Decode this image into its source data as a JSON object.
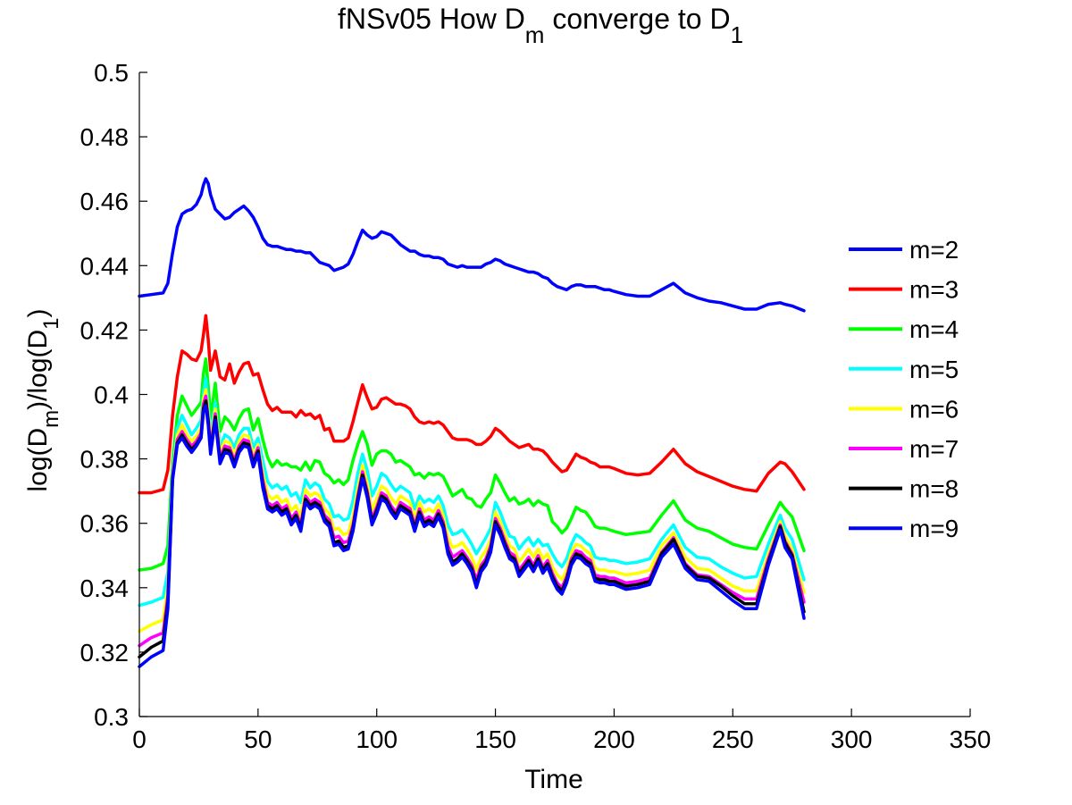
{
  "chart_data": {
    "type": "line",
    "title": {
      "prefix": "fNSv05 How D",
      "sub1": "m",
      "mid": " converge to D",
      "sub2": "1"
    },
    "xlabel": "Time",
    "ylabel": {
      "p1": "log(D",
      "s1": "m",
      "p2": ")/log(D",
      "s2": "1",
      "p3": ")"
    },
    "xlim": [
      0,
      350
    ],
    "ylim": [
      0.3,
      0.5
    ],
    "xticks": [
      0,
      50,
      100,
      150,
      200,
      250,
      300,
      350
    ],
    "yticks": [
      0.3,
      0.32,
      0.34,
      0.36,
      0.38,
      0.4,
      0.42,
      0.44,
      0.46,
      0.48,
      0.5
    ],
    "ytick_labels": [
      "0.3",
      "0.32",
      "0.34",
      "0.36",
      "0.38",
      "0.4",
      "0.42",
      "0.44",
      "0.46",
      "0.48",
      "0.5"
    ],
    "legend_position": "right",
    "x": [
      0,
      5,
      10,
      12,
      14,
      16,
      18,
      20,
      22,
      24,
      26,
      27,
      28,
      29,
      30,
      32,
      34,
      36,
      38,
      40,
      42,
      44,
      46,
      48,
      50,
      52,
      54,
      56,
      58,
      60,
      62,
      64,
      66,
      68,
      70,
      72,
      74,
      76,
      78,
      80,
      82,
      84,
      86,
      88,
      90,
      92,
      94,
      96,
      98,
      100,
      102,
      104,
      106,
      108,
      110,
      112,
      114,
      116,
      118,
      120,
      122,
      124,
      126,
      128,
      130,
      132,
      134,
      136,
      138,
      140,
      142,
      144,
      146,
      148,
      150,
      152,
      154,
      156,
      158,
      160,
      162,
      164,
      166,
      168,
      170,
      172,
      174,
      176,
      178,
      180,
      182,
      184,
      186,
      188,
      190,
      192,
      194,
      196,
      198,
      200,
      205,
      210,
      215,
      220,
      225,
      230,
      235,
      240,
      245,
      250,
      255,
      260,
      265,
      270,
      272,
      275,
      280
    ],
    "series": [
      {
        "name": "m=2",
        "color": "#0000ff",
        "values": [
          0.4305,
          0.431,
          0.4315,
          0.4345,
          0.444,
          0.452,
          0.456,
          0.457,
          0.4575,
          0.459,
          0.462,
          0.465,
          0.467,
          0.4655,
          0.462,
          0.4575,
          0.456,
          0.4545,
          0.455,
          0.4565,
          0.4575,
          0.4585,
          0.457,
          0.455,
          0.452,
          0.4485,
          0.4465,
          0.446,
          0.446,
          0.4455,
          0.445,
          0.445,
          0.4445,
          0.4445,
          0.444,
          0.444,
          0.4425,
          0.441,
          0.4405,
          0.44,
          0.4385,
          0.439,
          0.4395,
          0.4405,
          0.4435,
          0.4475,
          0.451,
          0.4495,
          0.4485,
          0.449,
          0.4505,
          0.45,
          0.4495,
          0.448,
          0.4465,
          0.4455,
          0.4445,
          0.4445,
          0.4435,
          0.443,
          0.443,
          0.4425,
          0.4425,
          0.442,
          0.4405,
          0.44,
          0.4395,
          0.44,
          0.4395,
          0.4395,
          0.4395,
          0.4395,
          0.4405,
          0.441,
          0.442,
          0.4415,
          0.4405,
          0.44,
          0.4395,
          0.439,
          0.4385,
          0.438,
          0.438,
          0.4375,
          0.4365,
          0.436,
          0.4345,
          0.4335,
          0.433,
          0.4325,
          0.4335,
          0.434,
          0.434,
          0.4335,
          0.4335,
          0.4335,
          0.433,
          0.4325,
          0.4325,
          0.432,
          0.431,
          0.4305,
          0.4305,
          0.4325,
          0.4345,
          0.4315,
          0.43,
          0.429,
          0.4285,
          0.4275,
          0.4265,
          0.4265,
          0.428,
          0.4285,
          0.428,
          0.4275,
          0.426
        ]
      },
      {
        "name": "m=3",
        "color": "#ff0000",
        "values": [
          0.3695,
          0.3695,
          0.3705,
          0.3765,
          0.3935,
          0.4055,
          0.4135,
          0.4125,
          0.411,
          0.4105,
          0.4135,
          0.4185,
          0.4245,
          0.417,
          0.4075,
          0.4135,
          0.4055,
          0.4045,
          0.4095,
          0.4035,
          0.407,
          0.4095,
          0.41,
          0.406,
          0.4065,
          0.4015,
          0.397,
          0.395,
          0.396,
          0.3945,
          0.3945,
          0.3945,
          0.393,
          0.395,
          0.3935,
          0.394,
          0.3925,
          0.3935,
          0.389,
          0.3895,
          0.3855,
          0.3855,
          0.3855,
          0.3865,
          0.3915,
          0.3975,
          0.403,
          0.399,
          0.3955,
          0.396,
          0.3985,
          0.399,
          0.398,
          0.397,
          0.397,
          0.3965,
          0.3955,
          0.393,
          0.3915,
          0.391,
          0.3915,
          0.391,
          0.3915,
          0.3905,
          0.3885,
          0.3865,
          0.386,
          0.386,
          0.386,
          0.3855,
          0.3845,
          0.3845,
          0.3855,
          0.387,
          0.3895,
          0.3885,
          0.387,
          0.3855,
          0.3845,
          0.3835,
          0.384,
          0.3845,
          0.383,
          0.383,
          0.3825,
          0.381,
          0.379,
          0.3775,
          0.376,
          0.3765,
          0.379,
          0.3815,
          0.3805,
          0.38,
          0.379,
          0.3785,
          0.3775,
          0.3775,
          0.3775,
          0.377,
          0.3755,
          0.375,
          0.3755,
          0.379,
          0.383,
          0.3785,
          0.376,
          0.3745,
          0.373,
          0.3715,
          0.3705,
          0.37,
          0.3755,
          0.379,
          0.3785,
          0.376,
          0.3705
        ]
      },
      {
        "name": "m=4",
        "color": "#00ff00",
        "values": [
          0.3455,
          0.346,
          0.3475,
          0.353,
          0.379,
          0.3935,
          0.3995,
          0.3965,
          0.3935,
          0.3955,
          0.3975,
          0.4065,
          0.411,
          0.4025,
          0.3925,
          0.4035,
          0.3885,
          0.393,
          0.3915,
          0.389,
          0.3925,
          0.395,
          0.3955,
          0.389,
          0.3925,
          0.386,
          0.3805,
          0.3775,
          0.3795,
          0.378,
          0.3785,
          0.3775,
          0.3775,
          0.3765,
          0.379,
          0.3765,
          0.3795,
          0.379,
          0.3755,
          0.3745,
          0.3725,
          0.3735,
          0.372,
          0.3735,
          0.3795,
          0.3845,
          0.3885,
          0.3845,
          0.378,
          0.3815,
          0.3825,
          0.3825,
          0.3815,
          0.379,
          0.3795,
          0.3785,
          0.3775,
          0.375,
          0.3755,
          0.374,
          0.3755,
          0.375,
          0.3755,
          0.3745,
          0.3715,
          0.3685,
          0.3695,
          0.3705,
          0.368,
          0.3675,
          0.3655,
          0.365,
          0.3675,
          0.3695,
          0.375,
          0.3725,
          0.3695,
          0.367,
          0.368,
          0.366,
          0.3665,
          0.3675,
          0.3655,
          0.367,
          0.366,
          0.3655,
          0.3605,
          0.359,
          0.357,
          0.3585,
          0.3615,
          0.365,
          0.364,
          0.3635,
          0.3615,
          0.359,
          0.3585,
          0.3585,
          0.358,
          0.3575,
          0.3565,
          0.357,
          0.3575,
          0.3625,
          0.367,
          0.361,
          0.3585,
          0.3575,
          0.3555,
          0.3535,
          0.3525,
          0.352,
          0.3595,
          0.3665,
          0.3645,
          0.362,
          0.3515
        ]
      },
      {
        "name": "m=5",
        "color": "#00ffff",
        "values": [
          0.3345,
          0.3355,
          0.337,
          0.345,
          0.3765,
          0.3895,
          0.3935,
          0.3905,
          0.3875,
          0.3895,
          0.392,
          0.4005,
          0.405,
          0.3965,
          0.387,
          0.3975,
          0.3835,
          0.3875,
          0.3865,
          0.3835,
          0.3875,
          0.3895,
          0.3895,
          0.3835,
          0.3865,
          0.3795,
          0.373,
          0.371,
          0.372,
          0.3705,
          0.3715,
          0.3685,
          0.3695,
          0.3665,
          0.3735,
          0.371,
          0.3725,
          0.3715,
          0.3675,
          0.366,
          0.362,
          0.3625,
          0.361,
          0.3615,
          0.367,
          0.3755,
          0.3815,
          0.3765,
          0.3685,
          0.3715,
          0.3755,
          0.3745,
          0.372,
          0.37,
          0.3715,
          0.3705,
          0.3695,
          0.3645,
          0.3685,
          0.3665,
          0.3675,
          0.3665,
          0.3685,
          0.3655,
          0.3595,
          0.3565,
          0.357,
          0.358,
          0.356,
          0.3535,
          0.3505,
          0.353,
          0.3555,
          0.3585,
          0.3665,
          0.3635,
          0.3595,
          0.356,
          0.3555,
          0.352,
          0.354,
          0.3555,
          0.353,
          0.355,
          0.353,
          0.3535,
          0.3505,
          0.348,
          0.3465,
          0.349,
          0.3535,
          0.3565,
          0.3555,
          0.354,
          0.353,
          0.3495,
          0.349,
          0.349,
          0.3485,
          0.3485,
          0.3475,
          0.348,
          0.349,
          0.355,
          0.3595,
          0.3525,
          0.3495,
          0.349,
          0.3465,
          0.3445,
          0.343,
          0.3435,
          0.3535,
          0.3625,
          0.3585,
          0.355,
          0.3425
        ]
      },
      {
        "name": "m=6",
        "color": "#ffff00",
        "values": [
          0.3265,
          0.3285,
          0.33,
          0.3405,
          0.3755,
          0.3875,
          0.3905,
          0.3875,
          0.3855,
          0.387,
          0.3895,
          0.3985,
          0.4015,
          0.394,
          0.385,
          0.3955,
          0.382,
          0.3855,
          0.385,
          0.381,
          0.3855,
          0.3875,
          0.387,
          0.381,
          0.3845,
          0.3755,
          0.369,
          0.3675,
          0.3685,
          0.3665,
          0.3675,
          0.364,
          0.3655,
          0.362,
          0.3705,
          0.3685,
          0.3695,
          0.3685,
          0.3645,
          0.363,
          0.358,
          0.3585,
          0.3565,
          0.357,
          0.362,
          0.371,
          0.378,
          0.3725,
          0.364,
          0.3675,
          0.3715,
          0.3705,
          0.368,
          0.366,
          0.3685,
          0.3675,
          0.3665,
          0.3615,
          0.3665,
          0.3635,
          0.3645,
          0.3635,
          0.366,
          0.3625,
          0.3555,
          0.3525,
          0.353,
          0.354,
          0.352,
          0.3495,
          0.3455,
          0.3495,
          0.3515,
          0.355,
          0.3635,
          0.3605,
          0.3565,
          0.353,
          0.352,
          0.348,
          0.35,
          0.352,
          0.3495,
          0.352,
          0.349,
          0.3505,
          0.3465,
          0.344,
          0.3425,
          0.3455,
          0.351,
          0.3535,
          0.353,
          0.3515,
          0.3505,
          0.346,
          0.3455,
          0.3455,
          0.345,
          0.345,
          0.344,
          0.3445,
          0.3455,
          0.353,
          0.357,
          0.3495,
          0.346,
          0.3455,
          0.343,
          0.3405,
          0.339,
          0.339,
          0.3505,
          0.3605,
          0.356,
          0.352,
          0.3385
        ]
      },
      {
        "name": "m=7",
        "color": "#ff00ff",
        "values": [
          0.322,
          0.3245,
          0.326,
          0.3375,
          0.3745,
          0.386,
          0.3885,
          0.386,
          0.384,
          0.3855,
          0.388,
          0.397,
          0.3995,
          0.3925,
          0.3835,
          0.394,
          0.3805,
          0.384,
          0.3835,
          0.3795,
          0.384,
          0.386,
          0.3855,
          0.3795,
          0.3835,
          0.3735,
          0.3665,
          0.3655,
          0.3665,
          0.3645,
          0.3655,
          0.3615,
          0.3635,
          0.3595,
          0.3685,
          0.3665,
          0.3675,
          0.3665,
          0.3625,
          0.361,
          0.3555,
          0.356,
          0.354,
          0.3545,
          0.3595,
          0.3685,
          0.376,
          0.37,
          0.3615,
          0.365,
          0.3695,
          0.3685,
          0.3655,
          0.3635,
          0.3665,
          0.3655,
          0.3645,
          0.3595,
          0.3645,
          0.361,
          0.362,
          0.361,
          0.364,
          0.3605,
          0.353,
          0.3495,
          0.3505,
          0.3515,
          0.3495,
          0.347,
          0.3425,
          0.347,
          0.349,
          0.353,
          0.3615,
          0.3585,
          0.3545,
          0.351,
          0.35,
          0.3455,
          0.3475,
          0.3495,
          0.347,
          0.35,
          0.3465,
          0.3485,
          0.3445,
          0.3415,
          0.34,
          0.3435,
          0.349,
          0.3515,
          0.351,
          0.3495,
          0.3485,
          0.344,
          0.3435,
          0.3435,
          0.343,
          0.343,
          0.3415,
          0.342,
          0.343,
          0.351,
          0.3555,
          0.3475,
          0.344,
          0.3435,
          0.341,
          0.3385,
          0.3365,
          0.3365,
          0.349,
          0.3595,
          0.3545,
          0.3505,
          0.3355
        ]
      },
      {
        "name": "m=8",
        "color": "#000000",
        "values": [
          0.3185,
          0.3215,
          0.3235,
          0.3355,
          0.374,
          0.385,
          0.3875,
          0.385,
          0.383,
          0.3845,
          0.387,
          0.3955,
          0.398,
          0.3915,
          0.3825,
          0.393,
          0.3795,
          0.383,
          0.3825,
          0.3785,
          0.383,
          0.385,
          0.3845,
          0.3785,
          0.3825,
          0.372,
          0.3655,
          0.3645,
          0.3655,
          0.3635,
          0.3645,
          0.3605,
          0.3625,
          0.3585,
          0.3675,
          0.3655,
          0.3665,
          0.3655,
          0.3615,
          0.36,
          0.354,
          0.3545,
          0.3525,
          0.353,
          0.3585,
          0.3675,
          0.375,
          0.369,
          0.3605,
          0.364,
          0.3685,
          0.3675,
          0.3645,
          0.3625,
          0.3655,
          0.3645,
          0.3635,
          0.3585,
          0.3635,
          0.36,
          0.361,
          0.36,
          0.363,
          0.3595,
          0.3515,
          0.348,
          0.349,
          0.3505,
          0.3485,
          0.346,
          0.341,
          0.346,
          0.348,
          0.352,
          0.3605,
          0.3575,
          0.3535,
          0.35,
          0.349,
          0.3445,
          0.3465,
          0.3485,
          0.346,
          0.349,
          0.3455,
          0.3475,
          0.3435,
          0.3405,
          0.339,
          0.3425,
          0.348,
          0.3505,
          0.35,
          0.3485,
          0.3475,
          0.343,
          0.3425,
          0.3425,
          0.342,
          0.342,
          0.3405,
          0.341,
          0.342,
          0.3505,
          0.355,
          0.347,
          0.3435,
          0.343,
          0.3405,
          0.3375,
          0.335,
          0.335,
          0.348,
          0.359,
          0.354,
          0.35,
          0.3325
        ]
      },
      {
        "name": "m=9",
        "color": "#0000ff",
        "values": [
          0.3155,
          0.3185,
          0.3205,
          0.3335,
          0.3735,
          0.3845,
          0.3865,
          0.384,
          0.382,
          0.384,
          0.3865,
          0.3945,
          0.3965,
          0.3905,
          0.3815,
          0.392,
          0.3785,
          0.382,
          0.3815,
          0.3775,
          0.382,
          0.384,
          0.3835,
          0.3775,
          0.3815,
          0.371,
          0.3645,
          0.3635,
          0.3645,
          0.3625,
          0.3635,
          0.3595,
          0.3615,
          0.3575,
          0.3665,
          0.3645,
          0.3655,
          0.3645,
          0.3605,
          0.359,
          0.353,
          0.3535,
          0.3515,
          0.352,
          0.3575,
          0.3665,
          0.374,
          0.368,
          0.3595,
          0.363,
          0.3675,
          0.3665,
          0.3635,
          0.3615,
          0.3645,
          0.3635,
          0.3625,
          0.3575,
          0.3625,
          0.359,
          0.36,
          0.359,
          0.362,
          0.3585,
          0.3505,
          0.347,
          0.348,
          0.3495,
          0.3475,
          0.345,
          0.34,
          0.345,
          0.347,
          0.351,
          0.3595,
          0.3565,
          0.3525,
          0.349,
          0.348,
          0.3435,
          0.3455,
          0.3475,
          0.345,
          0.348,
          0.3445,
          0.3465,
          0.3425,
          0.3395,
          0.338,
          0.3415,
          0.347,
          0.3495,
          0.349,
          0.3475,
          0.3465,
          0.342,
          0.3415,
          0.3415,
          0.341,
          0.341,
          0.3395,
          0.34,
          0.341,
          0.3495,
          0.3535,
          0.346,
          0.3425,
          0.342,
          0.339,
          0.336,
          0.3335,
          0.3335,
          0.347,
          0.358,
          0.3525,
          0.349,
          0.3305
        ]
      }
    ]
  }
}
